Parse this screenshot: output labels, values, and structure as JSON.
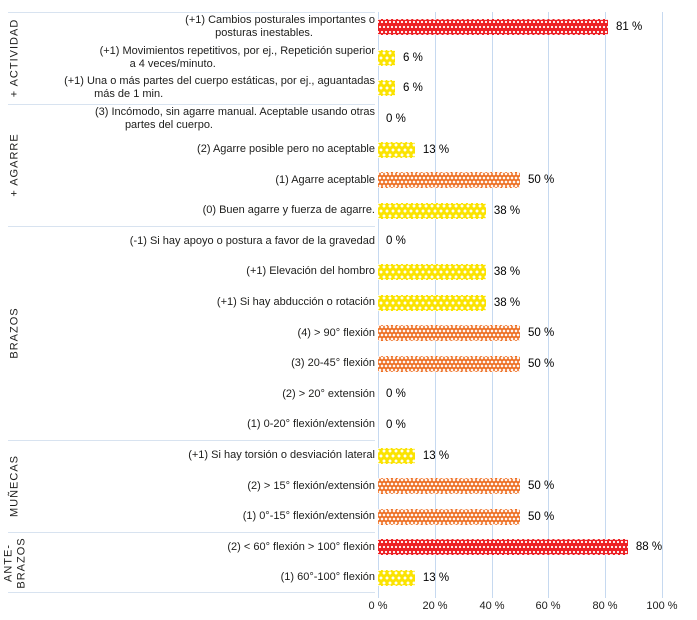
{
  "chart_data": {
    "type": "bar",
    "orientation": "horizontal",
    "title": "",
    "xlabel": "",
    "ylabel": "",
    "x_axis": {
      "min": 0,
      "max": 100,
      "ticks": [
        "0 %",
        "20 %",
        "40 %",
        "60 %",
        "80 %",
        "100 %"
      ],
      "grid": true,
      "grid_color": "#c6d9f0"
    },
    "legend": "none",
    "palette": {
      "red": "#ed2024",
      "orange": "#ed6e21",
      "yellow": "#fbe300"
    },
    "groups": [
      {
        "name": "+ ACTIVIDAD",
        "rows": [
          {
            "label": "(+1) Cambios posturales importantes o\nposturas inestables.",
            "value": 81,
            "value_label": "81 %",
            "color": "red"
          },
          {
            "label": "(+1) Movimientos repetitivos, por ej., Repetición superior\na 4 veces/minuto.",
            "value": 6,
            "value_label": "6 %",
            "color": "yellow"
          },
          {
            "label": "(+1) Una o más partes del cuerpo estáticas, por ej., aguantadas\nmás de 1 min.",
            "value": 6,
            "value_label": "6 %",
            "color": "yellow"
          }
        ]
      },
      {
        "name": "+ AGARRE",
        "rows": [
          {
            "label": "(3) Incómodo, sin agarre manual. Aceptable usando otras\npartes del cuerpo.",
            "value": 0,
            "value_label": "0 %",
            "color": "none"
          },
          {
            "label": "(2) Agarre posible pero no aceptable",
            "value": 13,
            "value_label": "13 %",
            "color": "yellow"
          },
          {
            "label": "(1) Agarre aceptable",
            "value": 50,
            "value_label": "50 %",
            "color": "orange"
          },
          {
            "label": "(0) Buen agarre y fuerza de agarre.",
            "value": 38,
            "value_label": "38 %",
            "color": "yellow"
          }
        ]
      },
      {
        "name": "BRAZOS",
        "rows": [
          {
            "label": "(-1) Si hay apoyo o postura a favor de la gravedad",
            "value": 0,
            "value_label": "0 %",
            "color": "none"
          },
          {
            "label": "(+1) Elevación del hombro",
            "value": 38,
            "value_label": "38 %",
            "color": "yellow"
          },
          {
            "label": "(+1) Si hay abducción o rotación",
            "value": 38,
            "value_label": "38 %",
            "color": "yellow"
          },
          {
            "label": "(4) > 90° flexión",
            "value": 50,
            "value_label": "50 %",
            "color": "orange"
          },
          {
            "label": "(3) 20-45° flexión",
            "value": 50,
            "value_label": "50 %",
            "color": "orange"
          },
          {
            "label": "(2) > 20° extensión",
            "value": 0,
            "value_label": "0 %",
            "color": "none"
          },
          {
            "label": "(1) 0-20° flexión/extensión",
            "value": 0,
            "value_label": "0 %",
            "color": "none"
          }
        ]
      },
      {
        "name": "MUÑECAS",
        "rows": [
          {
            "label": "(+1) Si hay torsión o desviación lateral",
            "value": 13,
            "value_label": "13 %",
            "color": "yellow"
          },
          {
            "label": "(2) > 15° flexión/extensión",
            "value": 50,
            "value_label": "50 %",
            "color": "orange"
          },
          {
            "label": "(1) 0°-15° flexión/extensión",
            "value": 50,
            "value_label": "50 %",
            "color": "orange"
          }
        ]
      },
      {
        "name": "ANTE-\nBRAZOS",
        "rows": [
          {
            "label": "(2) < 60° flexión > 100° flexión",
            "value": 88,
            "value_label": "88 %",
            "color": "red"
          },
          {
            "label": "(1) 60°-100° flexión",
            "value": 13,
            "value_label": "13 %",
            "color": "yellow"
          }
        ]
      }
    ]
  }
}
